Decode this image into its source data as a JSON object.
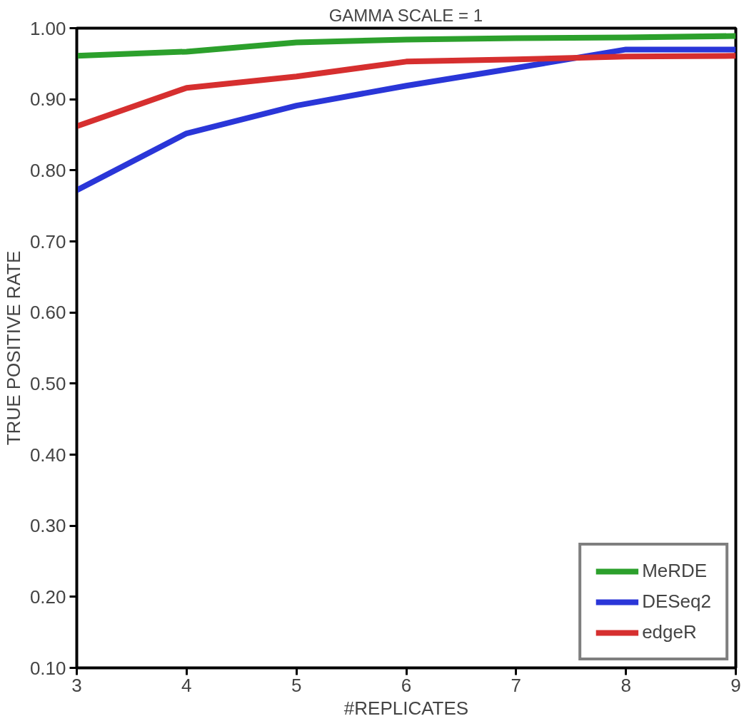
{
  "chart_data": {
    "type": "line",
    "title": "GAMMA SCALE = 1",
    "xlabel": "#REPLICATES",
    "ylabel": "TRUE POSITIVE RATE",
    "x": [
      3,
      4,
      5,
      6,
      7,
      8,
      9
    ],
    "series": [
      {
        "name": "MeRDE",
        "color": "#2ca02c",
        "values": [
          0.961,
          0.967,
          0.98,
          0.984,
          0.986,
          0.987,
          0.989
        ]
      },
      {
        "name": "DESeq2",
        "color": "#2a36d8",
        "values": [
          0.772,
          0.852,
          0.891,
          0.919,
          0.944,
          0.97,
          0.97
        ]
      },
      {
        "name": "edgeR",
        "color": "#d62f2f",
        "values": [
          0.862,
          0.916,
          0.932,
          0.953,
          0.956,
          0.96,
          0.961
        ]
      }
    ],
    "xlim": [
      3,
      9
    ],
    "ylim": [
      0.1,
      1.0
    ],
    "xticks": [
      3,
      4,
      5,
      6,
      7,
      8,
      9
    ],
    "yticks": [
      {
        "value": 0.1,
        "label": "0.10"
      },
      {
        "value": 0.2,
        "label": "0.20"
      },
      {
        "value": 0.3,
        "label": "0.30"
      },
      {
        "value": 0.4,
        "label": "0.40"
      },
      {
        "value": 0.5,
        "label": "0.50"
      },
      {
        "value": 0.6,
        "label": "0.60"
      },
      {
        "value": 0.7,
        "label": "0.70"
      },
      {
        "value": 0.8,
        "label": "0.80"
      },
      {
        "value": 0.9,
        "label": "0.90"
      },
      {
        "value": 1.0,
        "label": "1.00"
      }
    ],
    "grid": false,
    "legend": "bottom right",
    "marker": "none",
    "line_style": "solid"
  }
}
